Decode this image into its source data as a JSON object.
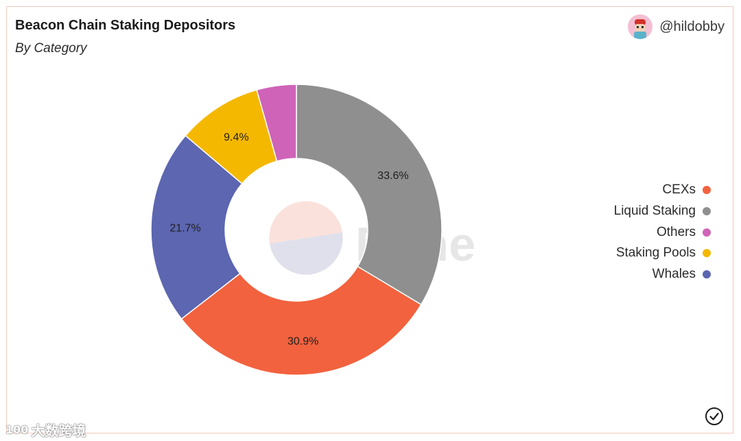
{
  "header": {
    "title": "Beacon Chain Staking Depositors",
    "subtitle": "By Category",
    "author": "@hildobby"
  },
  "watermark": {
    "dune_text": "Dune",
    "overlay_text": "大数跨境",
    "overlay_logo_text": "100"
  },
  "chart_data": {
    "type": "pie",
    "style": "donut",
    "title": "Beacon Chain Staking Depositors",
    "subtitle": "By Category",
    "legend_position": "right",
    "series": [
      {
        "name": "Liquid Staking",
        "value": 33.6,
        "label": "33.6%",
        "color": "#8f8f8f"
      },
      {
        "name": "CEXs",
        "value": 30.9,
        "label": "30.9%",
        "color": "#f2623e"
      },
      {
        "name": "Whales",
        "value": 21.7,
        "label": "21.7%",
        "color": "#5c66b1"
      },
      {
        "name": "Staking Pools",
        "value": 9.4,
        "label": "9.4%",
        "color": "#f5b800"
      },
      {
        "name": "Others",
        "value": 4.4,
        "label": "",
        "color": "#cf63b8"
      }
    ],
    "legend": [
      {
        "name": "CEXs",
        "color": "#f2623e"
      },
      {
        "name": "Liquid Staking",
        "color": "#8f8f8f"
      },
      {
        "name": "Others",
        "color": "#cf63b8"
      },
      {
        "name": "Staking Pools",
        "color": "#f5b800"
      },
      {
        "name": "Whales",
        "color": "#5c66b1"
      }
    ]
  }
}
